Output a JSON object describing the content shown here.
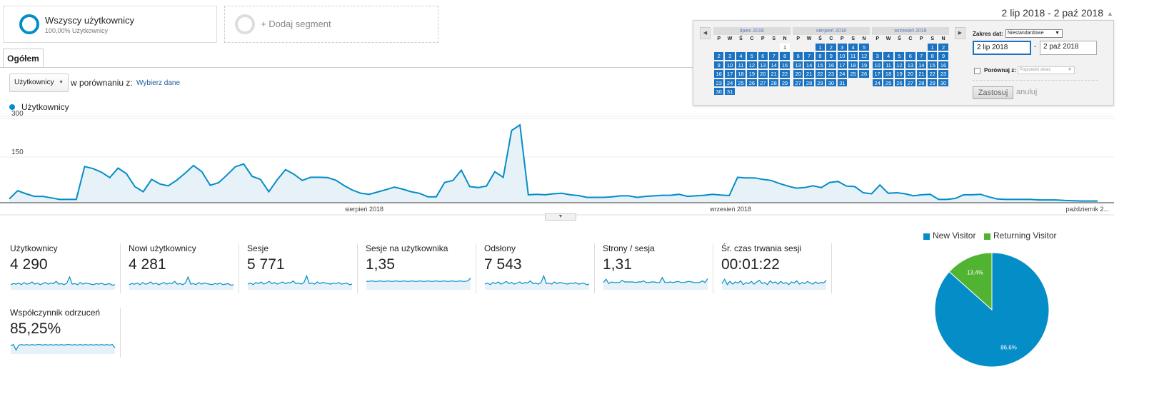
{
  "segments": {
    "active": {
      "title": "Wszyscy użytkownicy",
      "subtitle": "100,00% Użytkownicy"
    },
    "add_label": "+ Dodaj segment"
  },
  "date_range": "2 lip 2018 - 2 paź 2018",
  "tabs": [
    {
      "label": "Ogółem",
      "active": true
    }
  ],
  "metric_selector": {
    "value": "Użytkownicy",
    "compare_text": "w porównaniu z:",
    "select_link": "Wybierz dane"
  },
  "chart_data": [
    {
      "type": "area",
      "series": [
        {
          "name": "Użytkownicy",
          "values": [
            12,
            44,
            32,
            22,
            22,
            16,
            10,
            10,
            10,
            138,
            130,
            116,
            95,
            132,
            110,
            60,
            40,
            88,
            70,
            63,
            85,
            112,
            142,
            118,
            65,
            75,
            105,
            137,
            148,
            100,
            88,
            40,
            86,
            126,
            108,
            84,
            96,
            96,
            95,
            85,
            64,
            46,
            34,
            30,
            39,
            48,
            58,
            50,
            40,
            34,
            20,
            20,
            76,
            84,
            124,
            60,
            56,
            62,
            118,
            96,
            278,
            300,
            28,
            30,
            28,
            32,
            34,
            28,
            25,
            18,
            18,
            18,
            20,
            24,
            24,
            18,
            22,
            24,
            26,
            26,
            30,
            22,
            24,
            26,
            30,
            27,
            25,
            96,
            94,
            94,
            88,
            84,
            72,
            62,
            54,
            56,
            63,
            56,
            76,
            80,
            62,
            60,
            36,
            32,
            66,
            34,
            36,
            32,
            24,
            28,
            30,
            10,
            10,
            14,
            28,
            28,
            30,
            20,
            12,
            10,
            10,
            10,
            10,
            8,
            8,
            8,
            6,
            5,
            4,
            4,
            4
          ]
        }
      ],
      "legend": "Użytkownicy",
      "y_ticks": [
        "300",
        "150"
      ],
      "x_labels": [
        "sierpień 2018",
        "wrzesień 2018",
        "październik 2..."
      ],
      "ylim": [
        0,
        300
      ],
      "grid": true
    },
    {
      "type": "pie",
      "categories": [
        "New Visitor",
        "Returning Visitor"
      ],
      "values": [
        86.6,
        13.4
      ],
      "labels": [
        "86,6%",
        "13,4%"
      ],
      "colors": [
        "#058dc7",
        "#50b432"
      ],
      "legend_position": "top"
    }
  ],
  "scorecards": [
    {
      "label": "Użytkownicy",
      "value": "4 290",
      "spark": [
        8,
        10,
        9,
        11,
        8,
        12,
        9,
        10,
        13,
        9,
        11,
        8,
        10,
        12,
        9,
        11,
        10,
        14,
        9,
        10,
        8,
        11,
        22,
        9,
        10,
        8,
        12,
        9,
        11,
        10,
        9,
        8,
        10,
        9,
        11,
        8,
        9,
        10,
        7,
        8
      ]
    },
    {
      "label": "Nowi użytkownicy",
      "value": "4 281",
      "spark": [
        8,
        10,
        9,
        11,
        8,
        12,
        9,
        10,
        13,
        9,
        11,
        8,
        10,
        12,
        9,
        11,
        10,
        14,
        9,
        10,
        8,
        11,
        22,
        9,
        10,
        8,
        12,
        9,
        11,
        10,
        9,
        8,
        10,
        9,
        11,
        8,
        9,
        10,
        7,
        8
      ]
    },
    {
      "label": "Sesje",
      "value": "5 771",
      "spark": [
        9,
        11,
        8,
        12,
        10,
        13,
        9,
        11,
        14,
        10,
        12,
        9,
        11,
        13,
        10,
        12,
        11,
        15,
        10,
        11,
        9,
        12,
        24,
        10,
        11,
        9,
        13,
        10,
        12,
        11,
        10,
        9,
        11,
        10,
        12,
        9,
        10,
        11,
        8,
        9
      ]
    },
    {
      "label": "Sesje na użytkownika",
      "value": "1,35",
      "spark": [
        14,
        14,
        15,
        14,
        14,
        15,
        14,
        14,
        15,
        14,
        14,
        15,
        14,
        14,
        15,
        14,
        14,
        15,
        14,
        14,
        15,
        14,
        14,
        15,
        14,
        14,
        15,
        14,
        14,
        15,
        14,
        14,
        15,
        14,
        14,
        15,
        14,
        14,
        15,
        20
      ]
    },
    {
      "label": "Odsłony",
      "value": "7 543",
      "spark": [
        9,
        11,
        8,
        12,
        10,
        13,
        9,
        11,
        14,
        10,
        12,
        9,
        11,
        13,
        10,
        12,
        11,
        15,
        10,
        11,
        9,
        12,
        24,
        10,
        11,
        9,
        13,
        10,
        12,
        11,
        10,
        9,
        11,
        10,
        12,
        9,
        10,
        11,
        8,
        9
      ]
    },
    {
      "label": "Strony / sesja",
      "value": "1,31",
      "spark": [
        12,
        18,
        10,
        13,
        12,
        12,
        12,
        16,
        13,
        13,
        13,
        13,
        12,
        13,
        13,
        15,
        12,
        12,
        13,
        13,
        12,
        12,
        21,
        12,
        12,
        13,
        12,
        13,
        14,
        12,
        12,
        13,
        14,
        13,
        12,
        12,
        12,
        15,
        12,
        19
      ]
    },
    {
      "label": "Śr. czas trwania sesji",
      "value": "00:01:22",
      "spark": [
        10,
        18,
        8,
        14,
        9,
        13,
        11,
        15,
        8,
        12,
        10,
        14,
        9,
        13,
        16,
        10,
        12,
        8,
        15,
        11,
        13,
        9,
        14,
        10,
        12,
        8,
        13,
        11,
        15,
        9,
        12,
        10,
        14,
        11,
        9,
        13,
        10,
        12,
        11,
        16
      ]
    },
    {
      "label": "Współczynnik odrzuceń",
      "value": "85,25%",
      "spark": [
        14,
        16,
        6,
        15,
        16,
        15,
        16,
        15,
        16,
        15,
        16,
        16,
        15,
        16,
        15,
        16,
        15,
        16,
        15,
        16,
        15,
        16,
        16,
        15,
        16,
        15,
        16,
        15,
        16,
        15,
        16,
        15,
        16,
        15,
        16,
        15,
        16,
        15,
        16,
        10
      ]
    }
  ],
  "calendar": {
    "months": [
      {
        "name": "lipiec 2018",
        "offset": 6,
        "days": 31,
        "sel_from": 2,
        "sel_to": 31
      },
      {
        "name": "sierpień 2018",
        "offset": 2,
        "days": 31,
        "sel_from": 1,
        "sel_to": 31
      },
      {
        "name": "wrzesień 2018",
        "offset": 5,
        "days": 30,
        "sel_from": 1,
        "sel_to": 30
      }
    ],
    "weekdays": [
      "P",
      "W",
      "Ś",
      "C",
      "P",
      "S",
      "N"
    ],
    "range_label": "Zakres dat:",
    "range_type": "Niestandardowe",
    "start": "2 lip 2018",
    "end": "2 paź 2018",
    "compare_label": "Porównaj z:",
    "compare_placeholder": "Poprzedni okres",
    "apply_label": "Zastosuj",
    "cancel_label": "anuluj"
  }
}
